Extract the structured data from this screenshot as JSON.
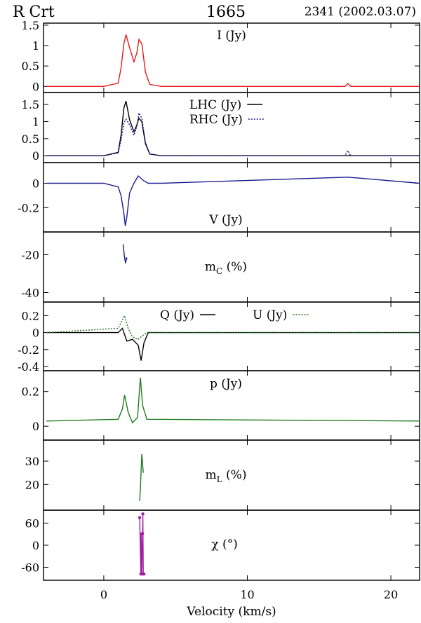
{
  "header": {
    "source": "R Crt",
    "frequency": "1665",
    "epoch": "2341 (2002.03.07)"
  },
  "colors": {
    "I": "#e8191c",
    "LHC": "#000000",
    "RHC": "#1b1b8f",
    "V": "#1b1b8f",
    "mC": "#1b1b8f",
    "Q": "#000000",
    "U": "#1f7a1f",
    "p": "#1f7a1f",
    "mL": "#1f7a1f",
    "chi": "#a020a0"
  },
  "chart_data": {
    "type": "line",
    "xlabel": "Velocity (km/s)",
    "xlim": [
      -4.2,
      22
    ],
    "xticks": [
      "0",
      "10",
      "20"
    ],
    "panels": [
      {
        "id": "I",
        "label": "I (Jy)",
        "ylim": [
          -0.15,
          1.55
        ],
        "yticks": [
          "0",
          "0.5",
          "1",
          "1.5"
        ],
        "series": [
          {
            "name": "I (Jy)",
            "x": [
              -4.0,
              0.0,
              1.0,
              1.2,
              1.4,
              1.55,
              1.8,
              2.1,
              2.3,
              2.45,
              2.65,
              2.9,
              3.2,
              4.0,
              10.0,
              16.8,
              17.0,
              17.2,
              22.0
            ],
            "y": [
              0.0,
              0.0,
              0.08,
              0.45,
              1.05,
              1.27,
              0.95,
              0.6,
              0.82,
              1.15,
              1.05,
              0.35,
              0.05,
              0.0,
              0.0,
              0.0,
              0.07,
              0.0,
              0.0
            ]
          }
        ]
      },
      {
        "id": "LR",
        "label": "",
        "ylim": [
          -0.2,
          1.85
        ],
        "yticks": [
          "0",
          "0.5",
          "1",
          "1.5"
        ],
        "legend": [
          "LHC (Jy)",
          "RHC (Jy)"
        ],
        "series": [
          {
            "name": "LHC (Jy)",
            "x": [
              -4.0,
              0.0,
              1.0,
              1.2,
              1.4,
              1.55,
              1.8,
              2.1,
              2.3,
              2.45,
              2.65,
              2.9,
              3.2,
              4.0,
              22.0
            ],
            "y": [
              0.0,
              0.0,
              0.1,
              0.6,
              1.4,
              1.6,
              1.05,
              0.7,
              0.9,
              1.1,
              1.0,
              0.35,
              0.05,
              0.0,
              0.0
            ]
          },
          {
            "name": "RHC (Jy)",
            "x": [
              -4.0,
              0.0,
              1.0,
              1.2,
              1.4,
              1.55,
              1.8,
              2.1,
              2.3,
              2.45,
              2.65,
              2.9,
              3.2,
              4.0,
              16.8,
              17.0,
              17.2,
              22.0
            ],
            "y": [
              0.0,
              0.0,
              0.08,
              0.45,
              0.95,
              1.07,
              0.9,
              0.6,
              0.85,
              1.25,
              1.1,
              0.4,
              0.05,
              0.0,
              0.0,
              0.15,
              0.0,
              0.0
            ]
          }
        ]
      },
      {
        "id": "V",
        "label": "V (Jy)",
        "ylim": [
          -0.4,
          0.17
        ],
        "yticks": [
          "0",
          "-0.2"
        ],
        "series": [
          {
            "name": "V (Jy)",
            "x": [
              -4.0,
              0.0,
              1.0,
              1.2,
              1.4,
              1.5,
              1.6,
              1.8,
              2.1,
              2.4,
              2.6,
              2.8,
              3.1,
              4.0,
              17.0,
              22.0
            ],
            "y": [
              0.0,
              0.0,
              -0.03,
              -0.1,
              -0.25,
              -0.35,
              -0.28,
              -0.08,
              0.0,
              0.06,
              0.04,
              0.02,
              0.0,
              0.0,
              0.05,
              0.0
            ]
          }
        ]
      },
      {
        "id": "mC",
        "label": "mC (%)",
        "ylim": [
          -45,
          -8
        ],
        "yticks": [
          "-20",
          "-40"
        ],
        "series": [
          {
            "name": "mC (%)",
            "x": [
              1.35,
              1.42,
              1.48,
              1.52,
              1.58,
              1.62
            ],
            "y": [
              -14.5,
              -20.0,
              -23.0,
              -24.5,
              -21.5,
              -22.5
            ]
          }
        ]
      },
      {
        "id": "QU",
        "label": "",
        "ylim": [
          -0.45,
          0.36
        ],
        "yticks": [
          "0.2",
          "0",
          "-0.2",
          "-0.4"
        ],
        "legend": [
          "Q (Jy)",
          "U (Jy)"
        ],
        "series": [
          {
            "name": "Q (Jy)",
            "x": [
              -4.0,
              1.0,
              1.3,
              1.6,
              2.0,
              2.4,
              2.6,
              2.8,
              3.1,
              22.0
            ],
            "y": [
              0.0,
              0.0,
              0.05,
              -0.1,
              -0.08,
              -0.15,
              -0.33,
              -0.12,
              0.0,
              0.0
            ]
          },
          {
            "name": "U (Jy)",
            "x": [
              -4.0,
              1.0,
              1.3,
              1.45,
              1.7,
              2.0,
              2.4,
              2.6,
              3.0,
              22.0
            ],
            "y": [
              0.0,
              0.05,
              0.15,
              0.2,
              0.05,
              -0.05,
              -0.08,
              -0.05,
              0.0,
              0.0
            ]
          }
        ]
      },
      {
        "id": "p",
        "label": "p (Jy)",
        "ylim": [
          -0.08,
          0.32
        ],
        "yticks": [
          "0",
          "0.2"
        ],
        "series": [
          {
            "name": "p (Jy)",
            "x": [
              -4.0,
              1.0,
              1.3,
              1.45,
              1.7,
              2.0,
              2.35,
              2.55,
              2.7,
              3.0,
              22.0
            ],
            "y": [
              0.03,
              0.04,
              0.1,
              0.18,
              0.08,
              0.02,
              0.05,
              0.28,
              0.12,
              0.04,
              0.03
            ]
          }
        ]
      },
      {
        "id": "mL",
        "label": "mL (%)",
        "ylim": [
          9,
          39
        ],
        "yticks": [
          "20",
          "30"
        ],
        "series": [
          {
            "name": "mL (%)",
            "x": [
              2.5,
              2.55,
              2.6,
              2.65,
              2.7,
              2.75
            ],
            "y": [
              13.0,
              18.5,
              26.0,
              33.0,
              29.0,
              25.0
            ]
          }
        ]
      },
      {
        "id": "chi",
        "label": "χ (°)",
        "ylim": [
          -95,
          95
        ],
        "yticks": [
          "60",
          "0",
          "-60"
        ],
        "series": [
          {
            "name": "χ (°)",
            "x": [
              2.5,
              2.58,
              2.6,
              2.65,
              2.7,
              2.72,
              2.75,
              2.8
            ],
            "y": [
              75.0,
              -78.0,
              30.0,
              -78.0,
              32.0,
              85.0,
              -78.0,
              -78.0
            ]
          }
        ]
      }
    ]
  }
}
